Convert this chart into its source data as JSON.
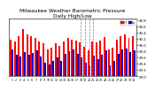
{
  "title": "Milwaukee Weather Barometric Pressure\nDaily High/Low",
  "title_fontsize": 4.2,
  "bar_width": 0.42,
  "high_color": "#ff0000",
  "low_color": "#0000cc",
  "background_color": "#ffffff",
  "ylim": [
    29.0,
    30.85
  ],
  "yticks": [
    29.0,
    29.2,
    29.4,
    29.6,
    29.8,
    30.0,
    30.2,
    30.4,
    30.6,
    30.8
  ],
  "legend_high": "Hi",
  "legend_low": "Lo",
  "highs": [
    30.18,
    30.12,
    30.28,
    30.52,
    30.35,
    30.28,
    30.22,
    30.12,
    30.05,
    29.85,
    29.92,
    30.05,
    29.98,
    30.12,
    30.22,
    30.18,
    30.15,
    30.08,
    29.95,
    29.82,
    30.1,
    30.08,
    30.15,
    30.25,
    29.85,
    29.92,
    30.18,
    30.28,
    30.35,
    30.22,
    30.28
  ],
  "lows": [
    29.85,
    29.7,
    29.62,
    29.78,
    29.68,
    29.75,
    29.82,
    29.62,
    29.42,
    29.38,
    29.48,
    29.6,
    29.5,
    29.72,
    29.8,
    29.85,
    29.72,
    29.6,
    29.42,
    29.32,
    29.65,
    29.55,
    29.7,
    29.82,
    29.35,
    29.48,
    29.72,
    29.85,
    29.9,
    29.78,
    29.82
  ],
  "dashed_lines": [
    17,
    18,
    19,
    20
  ],
  "xtick_labels": [
    "1",
    "2",
    "3",
    "4",
    "5",
    "6",
    "7",
    "8",
    "9",
    "1",
    "1",
    "1",
    "1",
    "1",
    "1",
    "1",
    "1",
    "1",
    "1",
    "2",
    "2",
    "2",
    "2",
    "2",
    "2",
    "2",
    "2",
    "2",
    "2",
    "3",
    "3"
  ]
}
